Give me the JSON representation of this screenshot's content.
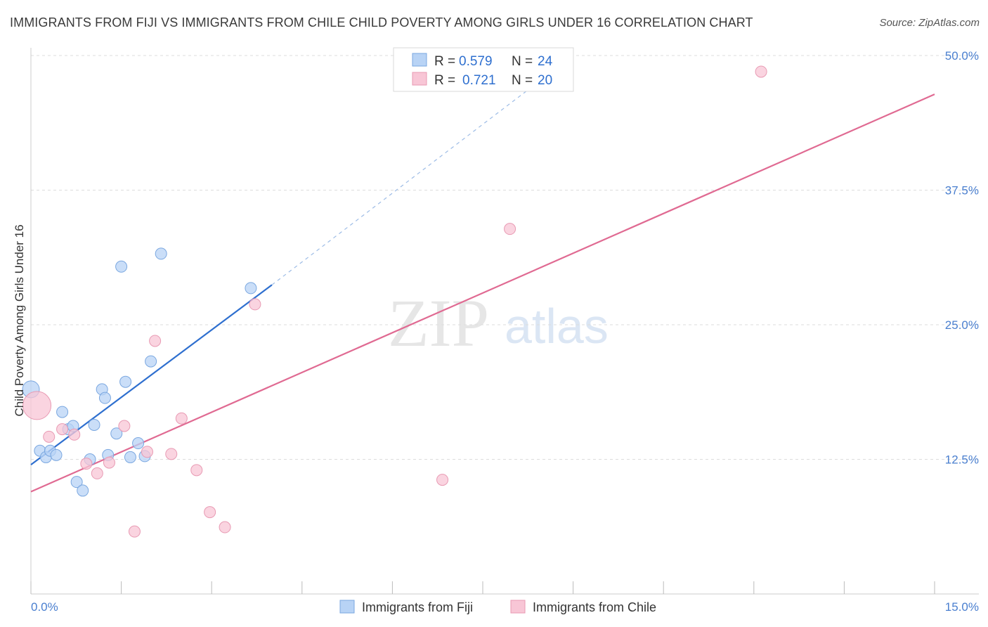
{
  "title": "IMMIGRANTS FROM FIJI VS IMMIGRANTS FROM CHILE CHILD POVERTY AMONG GIRLS UNDER 16 CORRELATION CHART",
  "source": "Source: ZipAtlas.com",
  "watermark": {
    "zip": "ZIP",
    "atlas": "atlas"
  },
  "colors": {
    "fiji_fill": "#b8d3f5",
    "fiji_stroke": "#7aa7e0",
    "fiji_line": "#2e6fcf",
    "chile_fill": "#f8c6d6",
    "chile_stroke": "#e89ab3",
    "chile_line": "#e06a92",
    "grid": "#dddddd",
    "axis_text": "#4a7fcf"
  },
  "legend": {
    "rows": [
      {
        "r_label": "R =",
        "r_value": "0.579",
        "n_label": "N =",
        "n_value": "24"
      },
      {
        "r_label": "R =",
        "r_value": "0.721",
        "n_label": "N =",
        "n_value": "20"
      }
    ]
  },
  "chart_data": {
    "type": "scatter",
    "xlabel": "",
    "ylabel": "Child Poverty Among Girls Under 16",
    "xlim": [
      0,
      15
    ],
    "ylim": [
      0,
      50
    ],
    "x_tick_labels": [
      "0.0%",
      "15.0%"
    ],
    "y_ticks": [
      12.5,
      25.0,
      37.5,
      50.0
    ],
    "y_tick_labels": [
      "12.5%",
      "25.0%",
      "37.5%",
      "50.0%"
    ],
    "series": [
      {
        "name": "Immigrants from Fiji",
        "color": "#b8d3f5",
        "points": [
          {
            "x": 0.0,
            "y": 19.0,
            "size": "large"
          },
          {
            "x": 0.15,
            "y": 13.3
          },
          {
            "x": 0.25,
            "y": 12.7
          },
          {
            "x": 0.32,
            "y": 13.3
          },
          {
            "x": 0.42,
            "y": 12.9
          },
          {
            "x": 0.52,
            "y": 16.9
          },
          {
            "x": 0.62,
            "y": 15.3
          },
          {
            "x": 0.7,
            "y": 15.6
          },
          {
            "x": 0.76,
            "y": 10.4
          },
          {
            "x": 0.86,
            "y": 9.6
          },
          {
            "x": 0.98,
            "y": 12.5
          },
          {
            "x": 1.05,
            "y": 15.7
          },
          {
            "x": 1.18,
            "y": 19.0
          },
          {
            "x": 1.23,
            "y": 18.2
          },
          {
            "x": 1.28,
            "y": 12.9
          },
          {
            "x": 1.42,
            "y": 14.9
          },
          {
            "x": 1.5,
            "y": 30.4
          },
          {
            "x": 1.57,
            "y": 19.7
          },
          {
            "x": 1.65,
            "y": 12.7
          },
          {
            "x": 1.78,
            "y": 14.0
          },
          {
            "x": 1.89,
            "y": 12.8
          },
          {
            "x": 1.99,
            "y": 21.6
          },
          {
            "x": 2.16,
            "y": 31.6
          },
          {
            "x": 3.65,
            "y": 28.4
          }
        ],
        "trend": {
          "x0": 0.0,
          "y0": 12.0,
          "x1": 4.0,
          "y1": 28.7,
          "dash_to_x": 9.0,
          "dash_to_y": 50.0
        }
      },
      {
        "name": "Immigrants from Chile",
        "color": "#f8c6d6",
        "points": [
          {
            "x": 0.1,
            "y": 17.5,
            "size": "xlarge"
          },
          {
            "x": 0.3,
            "y": 14.6
          },
          {
            "x": 0.52,
            "y": 15.3
          },
          {
            "x": 0.72,
            "y": 14.8
          },
          {
            "x": 0.92,
            "y": 12.1
          },
          {
            "x": 1.1,
            "y": 11.2
          },
          {
            "x": 1.3,
            "y": 12.2
          },
          {
            "x": 1.55,
            "y": 15.6
          },
          {
            "x": 1.72,
            "y": 5.8
          },
          {
            "x": 1.93,
            "y": 13.2
          },
          {
            "x": 2.06,
            "y": 23.5
          },
          {
            "x": 2.33,
            "y": 13.0
          },
          {
            "x": 2.5,
            "y": 16.3
          },
          {
            "x": 2.75,
            "y": 11.5
          },
          {
            "x": 2.97,
            "y": 7.6
          },
          {
            "x": 3.22,
            "y": 6.2
          },
          {
            "x": 3.72,
            "y": 26.9
          },
          {
            "x": 6.83,
            "y": 10.6
          },
          {
            "x": 7.95,
            "y": 33.9
          },
          {
            "x": 12.12,
            "y": 48.5
          }
        ],
        "trend": {
          "x0": 0.0,
          "y0": 9.5,
          "x1": 15.0,
          "y1": 46.4
        }
      }
    ]
  }
}
